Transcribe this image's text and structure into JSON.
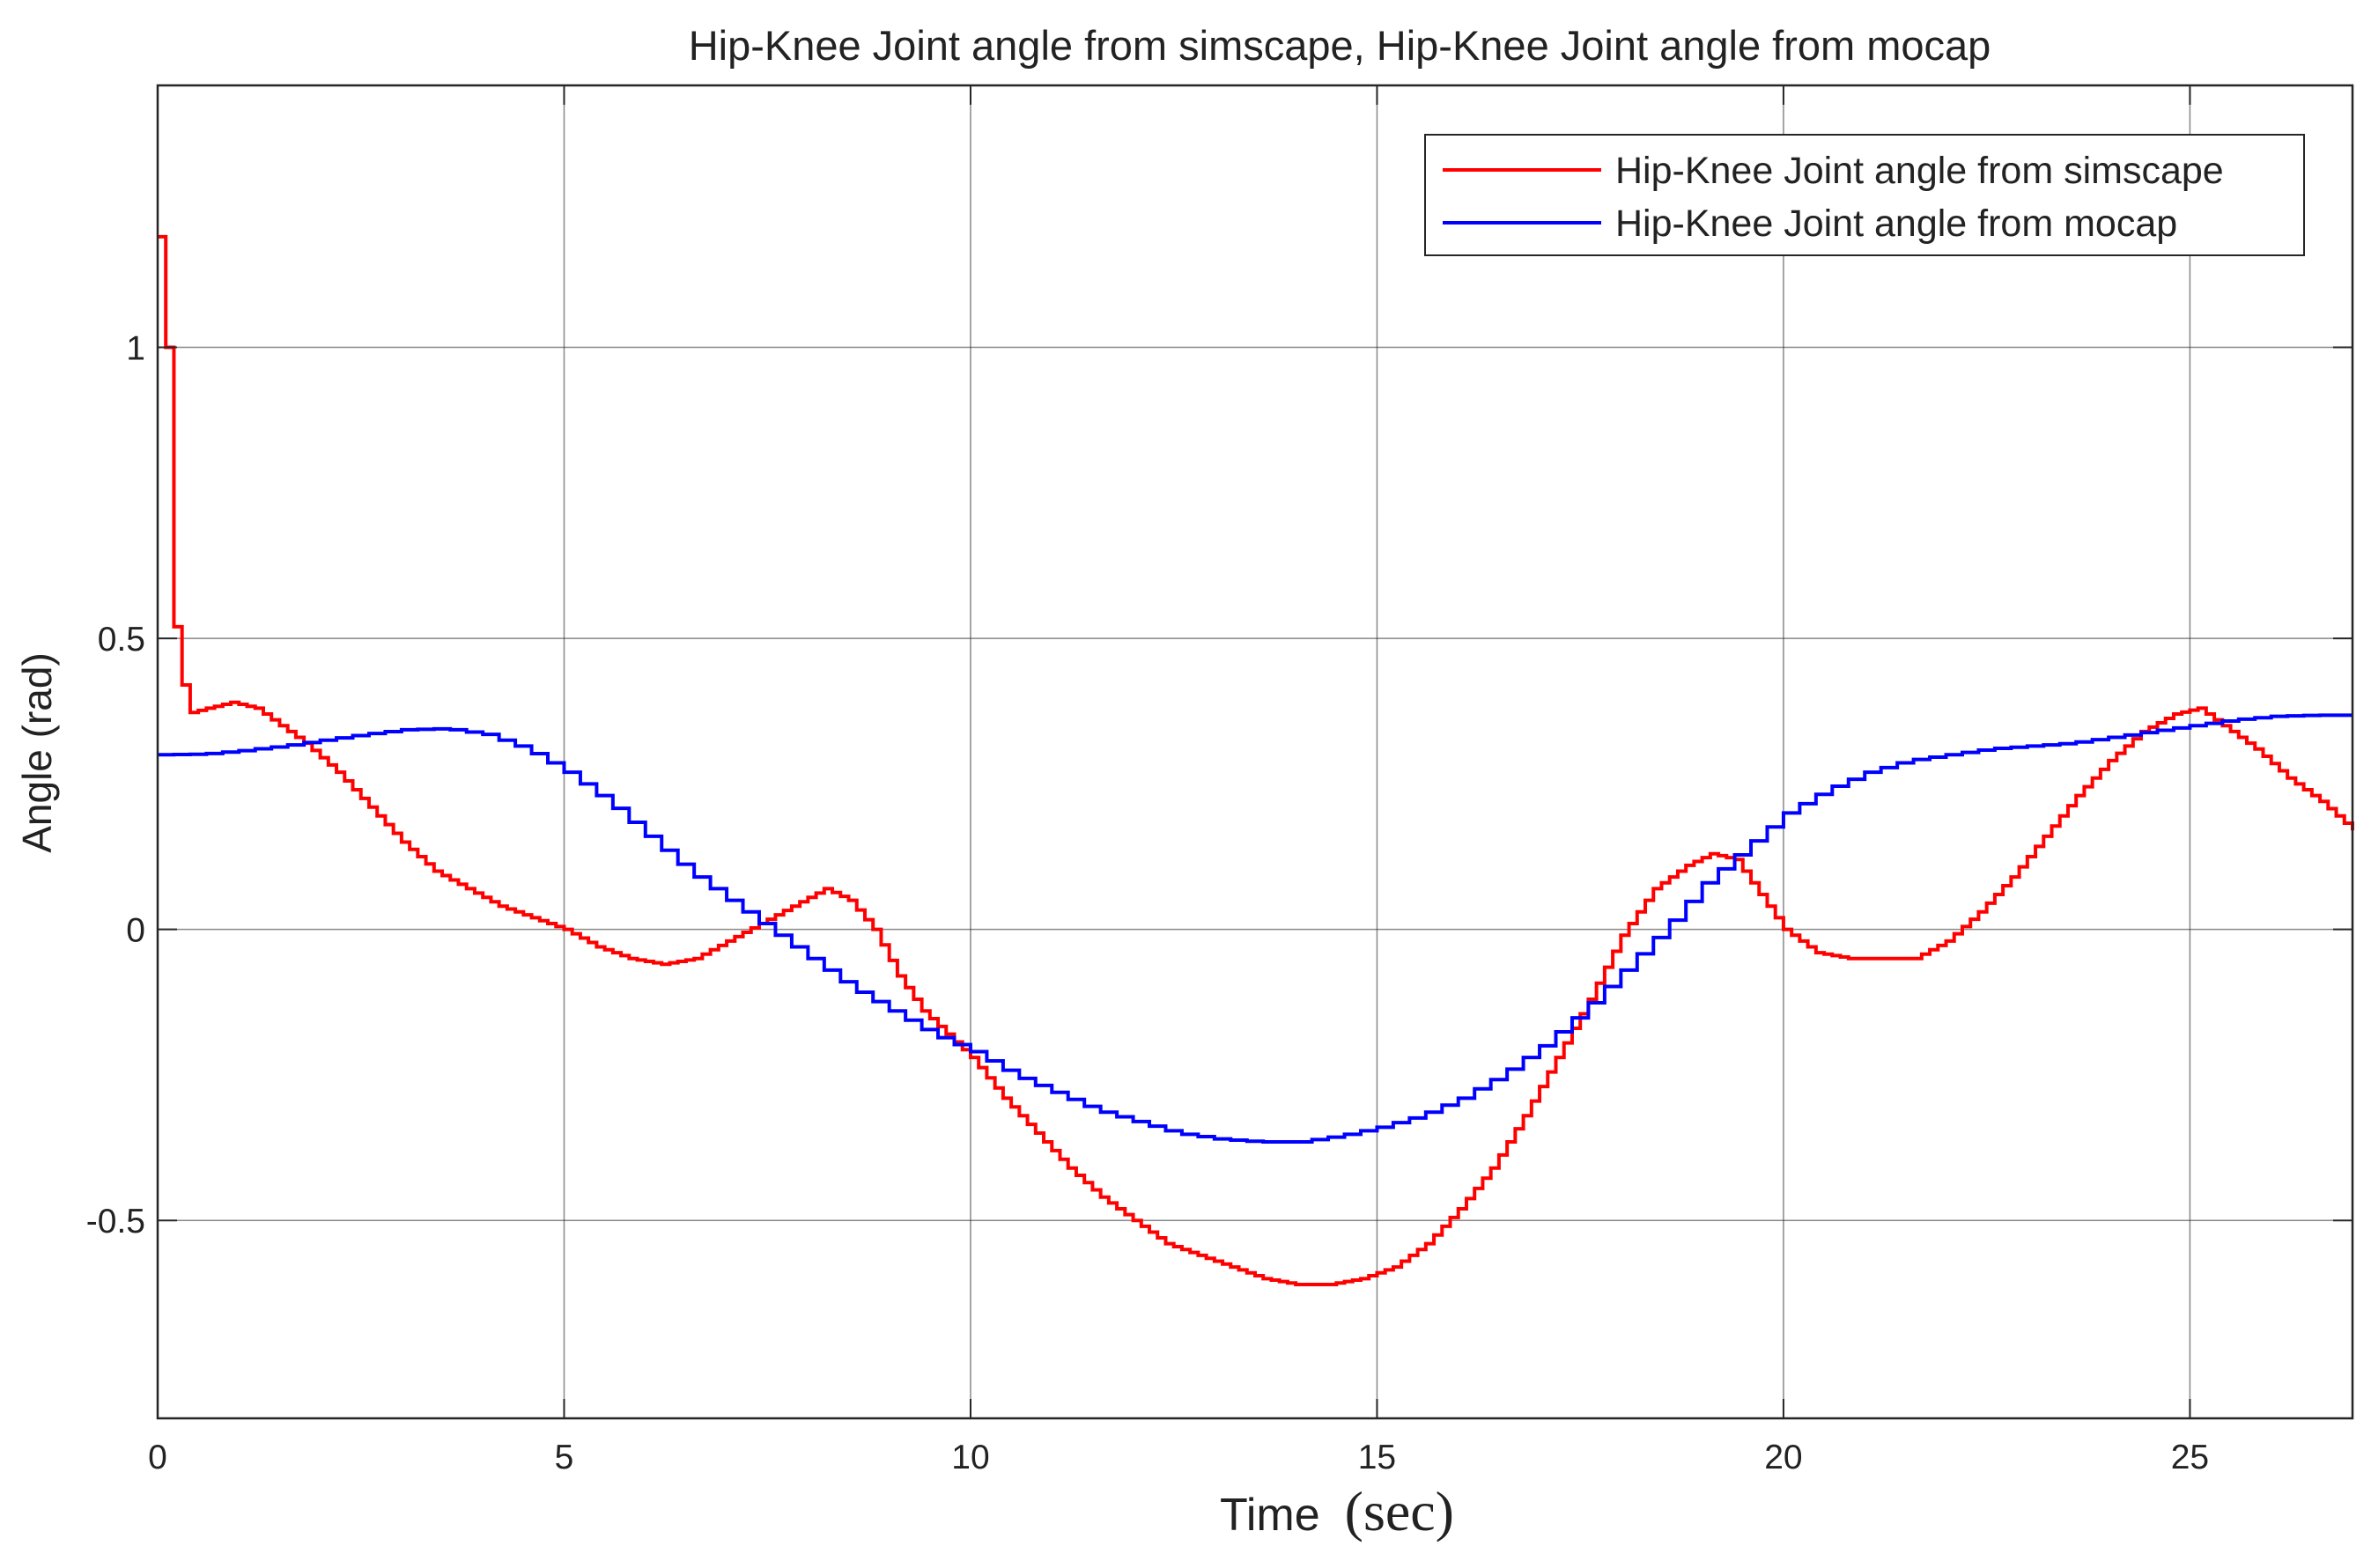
{
  "chart_data": {
    "type": "line",
    "title": "Hip-Knee Joint angle from simscape, Hip-Knee Joint angle from mocap",
    "xlabel": "Time",
    "xlabel_unit": "(sec)",
    "ylabel": "Angle (rad)",
    "xlim": [
      0,
      27
    ],
    "ylim": [
      -0.84,
      1.45
    ],
    "xticks": [
      0,
      5,
      10,
      15,
      20,
      25
    ],
    "xtick_labels": [
      "0",
      "5",
      "10",
      "15",
      "20",
      "25"
    ],
    "yticks": [
      -0.5,
      0,
      0.5,
      1
    ],
    "ytick_labels": [
      "-0.5",
      "0",
      "0.5",
      "1"
    ],
    "grid": true,
    "legend_position": "top-right",
    "line_style": "staircase",
    "series": [
      {
        "name": "Hip-Knee Joint angle from simscape",
        "color": "#ff0000",
        "step": 0.1,
        "x": [
          0,
          0.1,
          0.1,
          0.2,
          0.2,
          0.28,
          0.28,
          0.33,
          0.33,
          0.6,
          0.9,
          1.2,
          1.5,
          1.8,
          2.2,
          2.6,
          3.0,
          3.4,
          3.8,
          4.2,
          4.6,
          5.0,
          5.4,
          5.8,
          6.2,
          6.6,
          7.0,
          7.4,
          7.8,
          8.2,
          8.5,
          8.8,
          9.1,
          9.4,
          9.7,
          10.0,
          10.4,
          10.8,
          11.2,
          11.6,
          12.0,
          12.4,
          12.8,
          13.2,
          13.6,
          14.0,
          14.4,
          14.8,
          15.2,
          15.6,
          16.0,
          16.4,
          16.8,
          17.2,
          17.6,
          18.0,
          18.4,
          18.8,
          19.1,
          19.4,
          19.7,
          20.0,
          20.4,
          20.8,
          21.2,
          21.6,
          22.0,
          22.4,
          22.8,
          23.2,
          23.6,
          24.0,
          24.4,
          24.8,
          25.1,
          25.4,
          25.8,
          26.2,
          26.6,
          27.0
        ],
        "y": [
          1.19,
          1.19,
          1.0,
          1.0,
          0.52,
          0.52,
          0.42,
          0.42,
          0.37,
          0.38,
          0.39,
          0.38,
          0.35,
          0.32,
          0.27,
          0.21,
          0.15,
          0.1,
          0.07,
          0.04,
          0.02,
          0.0,
          -0.03,
          -0.05,
          -0.06,
          -0.05,
          -0.02,
          0.01,
          0.04,
          0.07,
          0.05,
          0.0,
          -0.08,
          -0.14,
          -0.18,
          -0.22,
          -0.29,
          -0.35,
          -0.41,
          -0.46,
          -0.5,
          -0.54,
          -0.56,
          -0.58,
          -0.6,
          -0.61,
          -0.61,
          -0.6,
          -0.58,
          -0.54,
          -0.48,
          -0.41,
          -0.32,
          -0.22,
          -0.12,
          -0.01,
          0.07,
          0.11,
          0.13,
          0.12,
          0.06,
          0.0,
          -0.04,
          -0.05,
          -0.05,
          -0.05,
          -0.02,
          0.03,
          0.09,
          0.16,
          0.23,
          0.29,
          0.34,
          0.37,
          0.38,
          0.35,
          0.31,
          0.26,
          0.22,
          0.17
        ]
      },
      {
        "name": "Hip-Knee Joint angle from mocap",
        "color": "#0000ff",
        "step": 0.2,
        "x": [
          0,
          0.5,
          1.0,
          1.5,
          2.0,
          2.5,
          3.0,
          3.5,
          4.0,
          4.5,
          5.0,
          5.5,
          6.0,
          6.5,
          7.0,
          7.5,
          8.0,
          8.5,
          9.0,
          9.5,
          10.0,
          10.5,
          11.0,
          11.5,
          12.0,
          12.5,
          13.0,
          13.5,
          14.0,
          14.5,
          15.0,
          15.5,
          16.0,
          16.5,
          17.0,
          17.5,
          18.0,
          18.5,
          19.0,
          19.5,
          20.0,
          20.5,
          21.0,
          21.5,
          22.0,
          22.5,
          23.0,
          23.5,
          24.0,
          24.5,
          25.0,
          25.5,
          26.0,
          26.5,
          27.0
        ],
        "y": [
          0.3,
          0.301,
          0.307,
          0.315,
          0.325,
          0.335,
          0.343,
          0.345,
          0.335,
          0.31,
          0.27,
          0.22,
          0.16,
          0.1,
          0.05,
          0.0,
          -0.05,
          -0.1,
          -0.14,
          -0.18,
          -0.21,
          -0.25,
          -0.28,
          -0.31,
          -0.33,
          -0.35,
          -0.36,
          -0.365,
          -0.365,
          -0.355,
          -0.34,
          -0.32,
          -0.29,
          -0.25,
          -0.2,
          -0.14,
          -0.07,
          0.0,
          0.08,
          0.14,
          0.2,
          0.24,
          0.27,
          0.29,
          0.3,
          0.31,
          0.315,
          0.32,
          0.33,
          0.34,
          0.35,
          0.36,
          0.366,
          0.368,
          0.368
        ]
      }
    ]
  }
}
